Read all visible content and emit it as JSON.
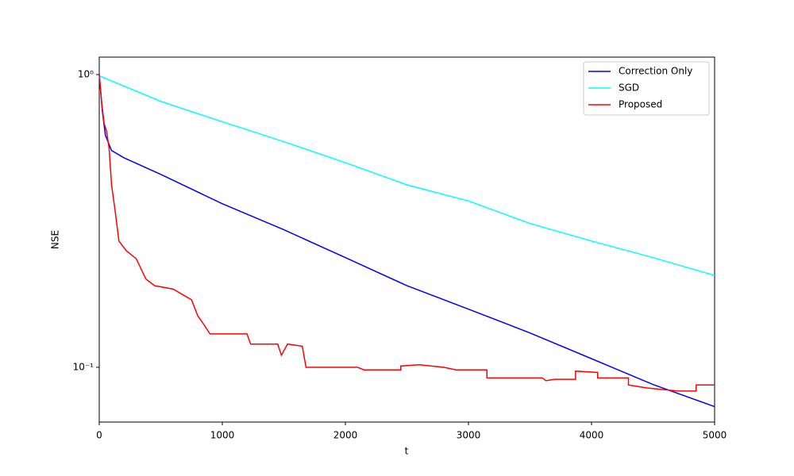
{
  "chart_data": {
    "type": "line",
    "xlabel": "t",
    "ylabel": "NSE",
    "log_y": true,
    "grid": false,
    "legend": "upper right",
    "xlim": [
      0,
      5000
    ],
    "xticks": [
      0,
      1000,
      2000,
      3000,
      4000,
      5000
    ],
    "ylim": [
      0.065,
      1.147
    ],
    "yticks": [
      {
        "value": 0.1,
        "label": "10⁻¹"
      },
      {
        "value": 1,
        "label": "10⁰"
      }
    ],
    "series": [
      {
        "name": "Correction Only",
        "color": "#0000ff",
        "x": [
          0,
          25,
          50,
          100,
          200,
          500,
          1000,
          1500,
          2000,
          2500,
          3000,
          3500,
          4000,
          4500,
          5000
        ],
        "values": [
          1.0,
          0.75,
          0.62,
          0.55,
          0.52,
          0.456,
          0.362,
          0.295,
          0.237,
          0.19,
          0.158,
          0.131,
          0.107,
          0.0873,
          0.0734
        ]
      },
      {
        "name": "SGD",
        "color": "#00ffff",
        "x": [
          0,
          500,
          1000,
          1500,
          2000,
          2500,
          3000,
          3500,
          4000,
          4500,
          5000
        ],
        "values": [
          0.99,
          0.81,
          0.69,
          0.59,
          0.5,
          0.42,
          0.37,
          0.31,
          0.27,
          0.237,
          0.206
        ]
      },
      {
        "name": "Proposed",
        "color": "#ff0000",
        "x": [
          0,
          20,
          40,
          60,
          80,
          100,
          130,
          160,
          220,
          300,
          380,
          450,
          600,
          750,
          800,
          850,
          900,
          1200,
          1230,
          1450,
          1480,
          1530,
          1650,
          1680,
          2100,
          2150,
          2450,
          2450,
          2600,
          2800,
          2900,
          3150,
          3150,
          3600,
          3630,
          3700,
          3870,
          3870,
          4050,
          4050,
          4300,
          4300,
          4450,
          4700,
          4850,
          4850,
          5000
        ],
        "values": [
          1.0,
          0.8,
          0.68,
          0.64,
          0.56,
          0.42,
          0.34,
          0.27,
          0.25,
          0.235,
          0.2,
          0.19,
          0.185,
          0.17,
          0.15,
          0.14,
          0.13,
          0.13,
          0.12,
          0.12,
          0.11,
          0.12,
          0.118,
          0.1,
          0.1,
          0.098,
          0.098,
          0.101,
          0.102,
          0.1,
          0.098,
          0.098,
          0.092,
          0.092,
          0.09,
          0.091,
          0.091,
          0.097,
          0.096,
          0.092,
          0.092,
          0.087,
          0.085,
          0.083,
          0.083,
          0.087,
          0.087
        ]
      }
    ]
  }
}
